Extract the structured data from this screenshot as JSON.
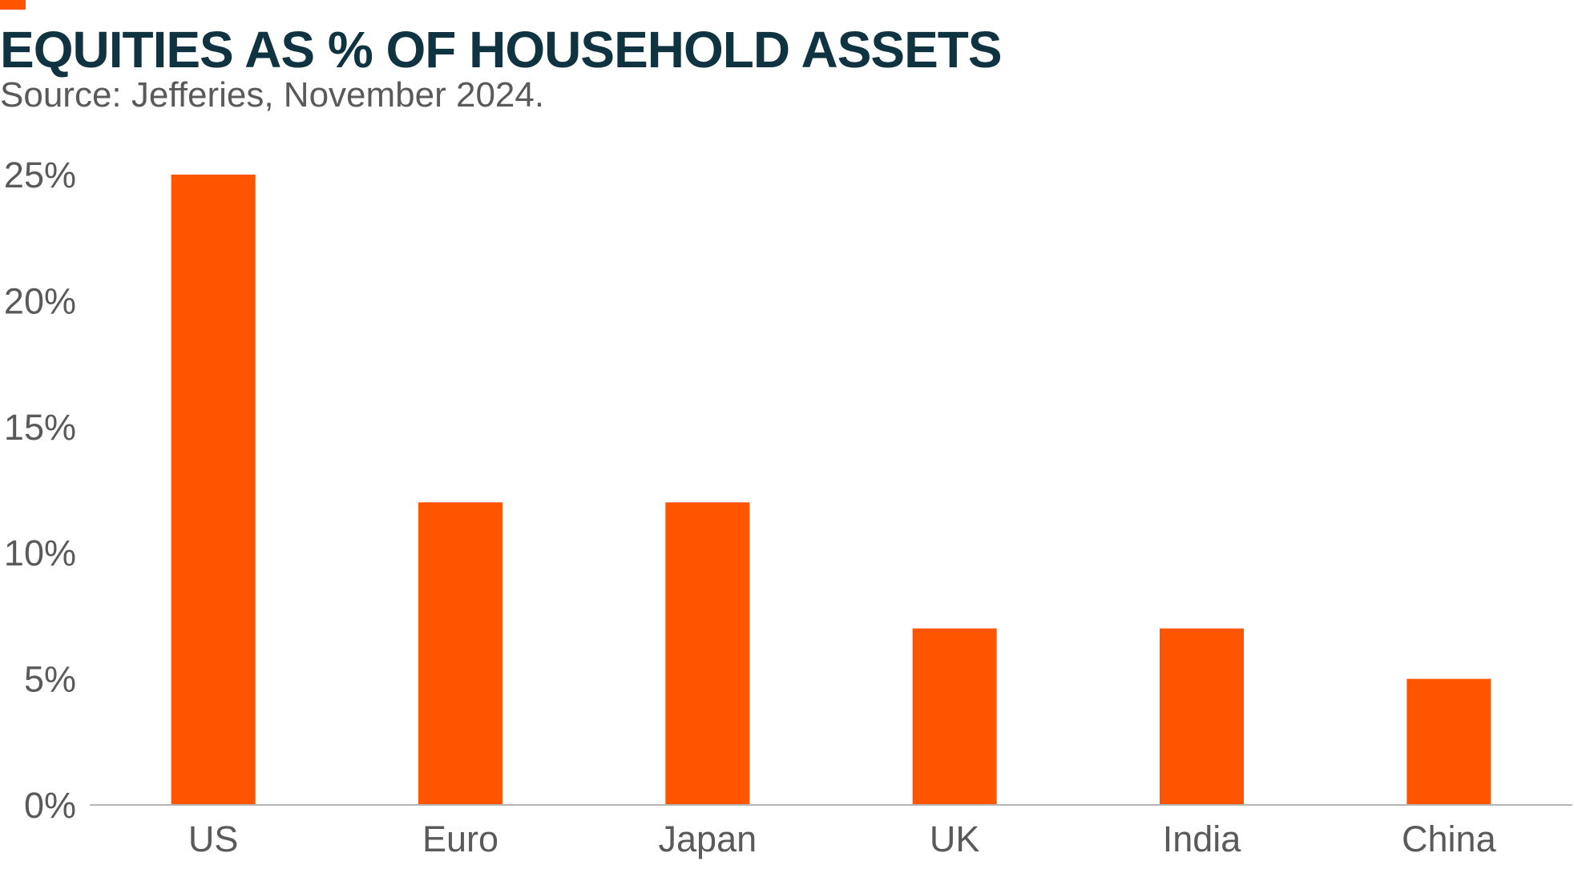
{
  "header": {
    "title": "EQUITIES AS % OF HOUSEHOLD ASSETS",
    "subtitle": "Source: Jefferies, November 2024."
  },
  "colors": {
    "accent": "#ff5500",
    "bar": "#ff5500",
    "title": "#0f3340",
    "subtitle": "#5a5a5a",
    "tick_label": "#5a5a5a",
    "axis_line": "#b5b5b5"
  },
  "chart_data": {
    "type": "bar",
    "title": "EQUITIES AS % OF HOUSEHOLD ASSETS",
    "subtitle": "Source: Jefferies, November 2024.",
    "categories": [
      "US",
      "Euro",
      "Japan",
      "UK",
      "India",
      "China"
    ],
    "values": [
      25,
      12,
      12,
      7,
      7,
      5
    ],
    "ylim": [
      0,
      25
    ],
    "yticks": [
      0,
      5,
      10,
      15,
      20,
      25
    ],
    "ytick_labels": [
      "0%",
      "5%",
      "10%",
      "15%",
      "20%",
      "25%"
    ],
    "xlabel": "",
    "ylabel": "",
    "grid": false,
    "legend": "none"
  }
}
